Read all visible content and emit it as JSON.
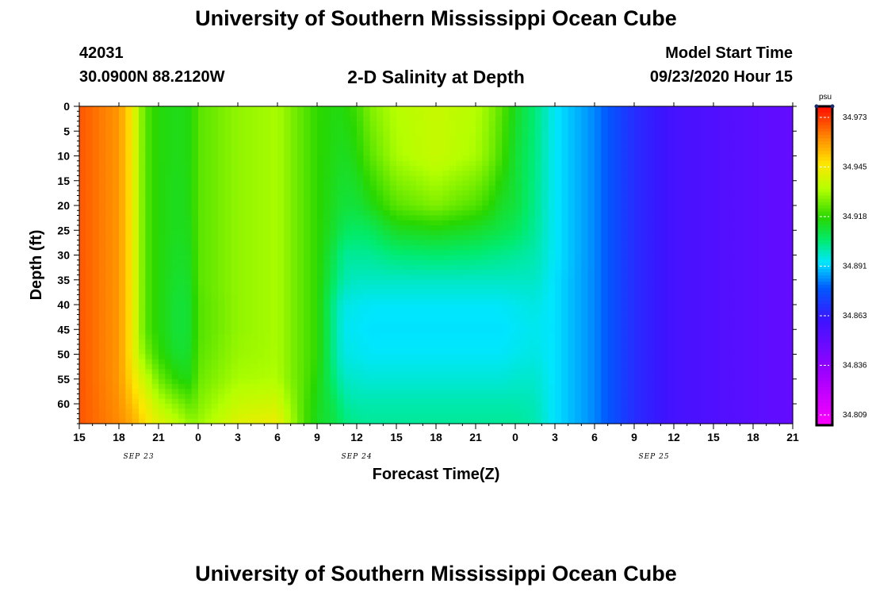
{
  "header": {
    "title": "University of Southern Mississippi Ocean Cube",
    "station": "42031",
    "coords": "30.0900N 88.2120W",
    "plot_title": "2-D Salinity at Depth",
    "model_label": "Model Start Time",
    "model_time": "09/23/2020 Hour 15"
  },
  "footer": {
    "title": "University of Southern Mississippi Ocean Cube"
  },
  "colors": {
    "axis": "#000000",
    "background": "#ffffff"
  },
  "chart_data": {
    "type": "heatmap",
    "title": "2-D Salinity at Depth",
    "xlabel": "Forecast Time(Z)",
    "ylabel": "Depth (ft)",
    "x_ticks": [
      "15",
      "18",
      "21",
      "0",
      "3",
      "6",
      "9",
      "12",
      "15",
      "18",
      "21",
      "0",
      "3",
      "6",
      "9",
      "12",
      "15",
      "18",
      "21"
    ],
    "x_range_hours": [
      0,
      54
    ],
    "date_labels": [
      {
        "label": "SEP 23",
        "hour": 4.5
      },
      {
        "label": "SEP 24",
        "hour": 21
      },
      {
        "label": "SEP 25",
        "hour": 43.5
      }
    ],
    "y_ticks": [
      0,
      5,
      10,
      15,
      20,
      25,
      30,
      35,
      40,
      45,
      50,
      55,
      60
    ],
    "y_range_ft": [
      0,
      64
    ],
    "colorbar": {
      "unit": "psu",
      "labels": [
        "34.973",
        "34.945",
        "34.918",
        "34.891",
        "34.863",
        "34.836",
        "34.809"
      ],
      "min": 34.795,
      "max": 34.986
    },
    "time_hours": [
      0,
      3,
      4,
      4.5,
      5,
      6,
      7.5,
      8.5,
      9,
      12,
      15,
      16,
      17,
      18,
      19.5,
      20,
      21,
      22,
      24,
      27,
      30,
      31,
      32,
      33,
      34.5,
      36,
      39,
      42,
      45,
      54
    ],
    "depths_ft": [
      0,
      10,
      20,
      25,
      30,
      35,
      40,
      45,
      50,
      55,
      60,
      64
    ],
    "salinity_psu": [
      [
        34.975,
        34.975,
        34.975,
        34.975,
        34.975,
        34.975,
        34.975,
        34.975,
        34.975,
        34.975,
        34.975,
        34.975
      ],
      [
        34.965,
        34.965,
        34.965,
        34.965,
        34.965,
        34.965,
        34.965,
        34.965,
        34.965,
        34.965,
        34.966,
        34.967
      ],
      [
        34.95,
        34.95,
        34.95,
        34.95,
        34.95,
        34.95,
        34.95,
        34.95,
        34.95,
        34.953,
        34.958,
        34.962
      ],
      [
        34.936,
        34.936,
        34.936,
        34.936,
        34.936,
        34.936,
        34.936,
        34.936,
        34.938,
        34.945,
        34.953,
        34.958
      ],
      [
        34.925,
        34.925,
        34.925,
        34.925,
        34.925,
        34.925,
        34.925,
        34.925,
        34.93,
        34.94,
        34.948,
        34.952
      ],
      [
        34.918,
        34.918,
        34.918,
        34.918,
        34.918,
        34.918,
        34.918,
        34.918,
        34.92,
        34.928,
        34.938,
        34.945
      ],
      [
        34.916,
        34.916,
        34.915,
        34.915,
        34.914,
        34.913,
        34.912,
        34.912,
        34.913,
        34.918,
        34.93,
        34.938
      ],
      [
        34.918,
        34.918,
        34.918,
        34.917,
        34.916,
        34.915,
        34.914,
        34.914,
        34.915,
        34.917,
        34.925,
        34.932
      ],
      [
        34.925,
        34.925,
        34.925,
        34.925,
        34.925,
        34.925,
        34.924,
        34.924,
        34.925,
        34.927,
        34.93,
        34.933
      ],
      [
        34.932,
        34.932,
        34.932,
        34.932,
        34.932,
        34.932,
        34.932,
        34.932,
        34.933,
        34.935,
        34.94,
        34.945
      ],
      [
        34.935,
        34.935,
        34.935,
        34.935,
        34.935,
        34.935,
        34.935,
        34.935,
        34.935,
        34.936,
        34.942,
        34.948
      ],
      [
        34.93,
        34.93,
        34.93,
        34.93,
        34.93,
        34.93,
        34.93,
        34.93,
        34.93,
        34.93,
        34.933,
        34.936
      ],
      [
        34.925,
        34.925,
        34.925,
        34.925,
        34.925,
        34.925,
        34.925,
        34.925,
        34.925,
        34.925,
        34.924,
        34.924
      ],
      [
        34.92,
        34.92,
        34.92,
        34.92,
        34.92,
        34.92,
        34.92,
        34.92,
        34.92,
        34.918,
        34.916,
        34.915
      ],
      [
        34.917,
        34.916,
        34.914,
        34.912,
        34.908,
        34.905,
        34.9,
        34.9,
        34.9,
        34.903,
        34.908,
        34.91
      ],
      [
        34.918,
        34.915,
        34.912,
        34.908,
        34.902,
        34.9,
        34.895,
        34.894,
        34.895,
        34.898,
        34.902,
        34.905
      ],
      [
        34.922,
        34.918,
        34.912,
        34.907,
        34.902,
        34.898,
        34.894,
        34.893,
        34.894,
        34.897,
        34.9,
        34.903
      ],
      [
        34.93,
        34.925,
        34.916,
        34.908,
        34.902,
        34.898,
        34.893,
        34.892,
        34.893,
        34.896,
        34.9,
        34.902
      ],
      [
        34.937,
        34.935,
        34.925,
        34.915,
        34.905,
        34.898,
        34.893,
        34.892,
        34.893,
        34.896,
        34.9,
        34.902
      ],
      [
        34.94,
        34.94,
        34.93,
        34.917,
        34.906,
        34.898,
        34.893,
        34.892,
        34.893,
        34.896,
        34.9,
        34.902
      ],
      [
        34.937,
        34.935,
        34.924,
        34.914,
        34.905,
        34.898,
        34.893,
        34.892,
        34.893,
        34.896,
        34.9,
        34.902
      ],
      [
        34.932,
        34.93,
        34.92,
        34.912,
        34.904,
        34.898,
        34.893,
        34.892,
        34.893,
        34.896,
        34.9,
        34.902
      ],
      [
        34.925,
        34.922,
        34.914,
        34.91,
        34.903,
        34.898,
        34.893,
        34.892,
        34.893,
        34.896,
        34.9,
        34.902
      ],
      [
        34.915,
        34.913,
        34.912,
        34.908,
        34.902,
        34.898,
        34.894,
        34.893,
        34.894,
        34.897,
        34.9,
        34.902
      ],
      [
        34.905,
        34.904,
        34.903,
        34.902,
        34.9,
        34.898,
        34.895,
        34.894,
        34.895,
        34.897,
        34.899,
        34.9
      ],
      [
        34.893,
        34.893,
        34.893,
        34.893,
        34.893,
        34.892,
        34.892,
        34.892,
        34.892,
        34.892,
        34.892,
        34.892
      ],
      [
        34.882,
        34.882,
        34.882,
        34.882,
        34.882,
        34.882,
        34.882,
        34.882,
        34.882,
        34.882,
        34.882,
        34.882
      ],
      [
        34.865,
        34.865,
        34.865,
        34.865,
        34.865,
        34.865,
        34.865,
        34.865,
        34.865,
        34.865,
        34.865,
        34.865
      ],
      [
        34.855,
        34.855,
        34.855,
        34.855,
        34.855,
        34.855,
        34.855,
        34.855,
        34.855,
        34.855,
        34.855,
        34.855
      ],
      [
        34.845,
        34.845,
        34.845,
        34.845,
        34.845,
        34.845,
        34.845,
        34.845,
        34.845,
        34.845,
        34.845,
        34.845
      ]
    ]
  }
}
